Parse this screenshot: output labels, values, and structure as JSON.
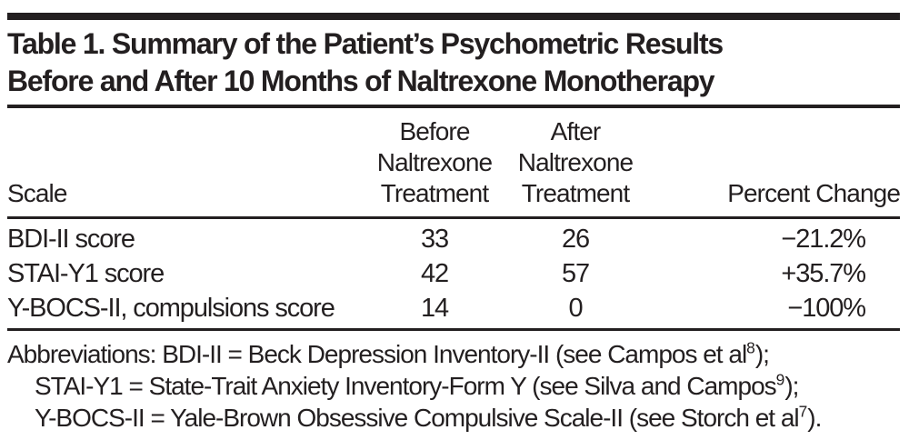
{
  "table": {
    "title": {
      "line1": "Table 1. Summary of the Patient’s Psychometric Results",
      "line2": "Before and After 10 Months of Naltrexone Monotherapy"
    },
    "columns": {
      "scale": "Scale",
      "before": "Before\nNaltrexone\nTreatment",
      "after": "After\nNaltrexone\nTreatment",
      "percent": "Percent Change"
    },
    "rows": [
      {
        "scale": "BDI-II score",
        "before": "33",
        "after": "26",
        "percent": "−21.2%"
      },
      {
        "scale": "STAI-Y1 score",
        "before": "42",
        "after": "57",
        "percent": "+35.7%"
      },
      {
        "scale": "Y-BOCS-II, compulsions score",
        "before": "14",
        "after": "0",
        "percent": "−100%"
      }
    ],
    "footnotes": [
      {
        "pre": "Abbreviations: BDI-II = Beck Depression Inventory-II (see Campos et al",
        "sup": "8",
        "post": ");"
      },
      {
        "pre": "STAI-Y1 = State-Trait Anxiety Inventory-Form Y (see Silva and Campos",
        "sup": "9",
        "post": ");"
      },
      {
        "pre": "Y-BOCS-II = Yale-Brown Obsessive Compulsive Scale-II (see Storch et al",
        "sup": "7",
        "post": ")."
      }
    ],
    "colors": {
      "text": "#231f20",
      "rule": "#231f20",
      "background": "#ffffff"
    }
  }
}
